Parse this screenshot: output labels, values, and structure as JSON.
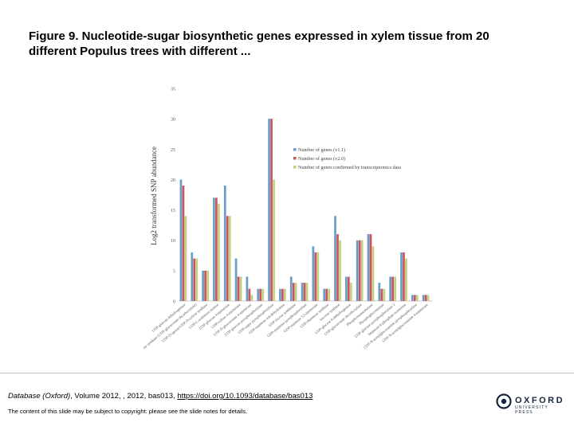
{
  "slide": {
    "figure_label": "Figure 9.",
    "figure_caption": " Nucleotide-sugar biosynthetic genes expressed in xylem tissue from 20 different Populus trees with different ..."
  },
  "citation": {
    "journal": "Database (Oxford)",
    "details": ", Volume 2012, , 2012, bas013, ",
    "doi": "https://doi.org/10.1093/database/bas013"
  },
  "copyright_note": "The content of this slide may be subject to copyright: please see the slide notes for details.",
  "logo": {
    "name": "OXFORD",
    "sub": "UNIVERSITY PRESS"
  },
  "colors": {
    "v11": "#6b9bc8",
    "v20": "#c8575d",
    "transcript": "#c6cf82"
  },
  "chart_data": {
    "type": "bar",
    "ylabel": "Log2 transformed SNP abundance",
    "ylim": [
      0,
      35
    ],
    "yticks": [
      0,
      5,
      10,
      15,
      20,
      25,
      30,
      35
    ],
    "categories": [
      "UDP-glucose dehydrogenase",
      "UDP-D-xylose synthase (UDP-glucuronate decarboxylase)",
      "UDP-D-apiose/UDP-D-xylose synthase",
      "UDP-L-arabinose mutase",
      "UDP-glucose 4-epimerase",
      "UDP-xylose 4-epimerase",
      "UDP-D-glucuronate 4-epimerase",
      "UDP-glucose pyrophosphorylase",
      "UDP-sugar pyrophosphorylase",
      "GDP-mannose 4,6-dehydratase",
      "GDP-fucose synthetase",
      "GDP-mannose pyrophosphorylase",
      "GDP-mannose 3,5-epimerase",
      "UDP-rhamnose synthase",
      "Sucrose synthase",
      "UDP-glucose 6-dehydrogenase",
      "UDP-glucuronate decarboxylase",
      "Phosphomannomutase",
      "Phosphoglucomutase",
      "UDP-glucose pyrophosphorylase 2",
      "Mannose-6-phosphate isomerase",
      "UDP-N-acetylglucosamine pyrophosphorylase",
      "UDP-N-acetylglucosamine 4-epimerase"
    ],
    "series": [
      {
        "name": "Number of genes (v1.1)",
        "values": [
          20,
          8,
          5,
          17,
          19,
          7,
          4,
          2,
          30,
          2,
          4,
          3,
          9,
          2,
          14,
          4,
          10,
          11,
          3,
          4,
          8,
          1,
          1
        ]
      },
      {
        "name": "Number of genes (v2.0)",
        "values": [
          19,
          7,
          5,
          17,
          14,
          4,
          2,
          2,
          30,
          2,
          3,
          3,
          8,
          2,
          11,
          4,
          10,
          11,
          2,
          4,
          8,
          1,
          1
        ]
      },
      {
        "name": "Number of genes confirmed by transcriptomics data",
        "values": [
          14,
          7,
          5,
          16,
          14,
          4,
          1,
          2,
          20,
          2,
          3,
          3,
          8,
          2,
          10,
          3,
          10,
          9,
          2,
          4,
          7,
          1,
          1
        ]
      }
    ]
  }
}
